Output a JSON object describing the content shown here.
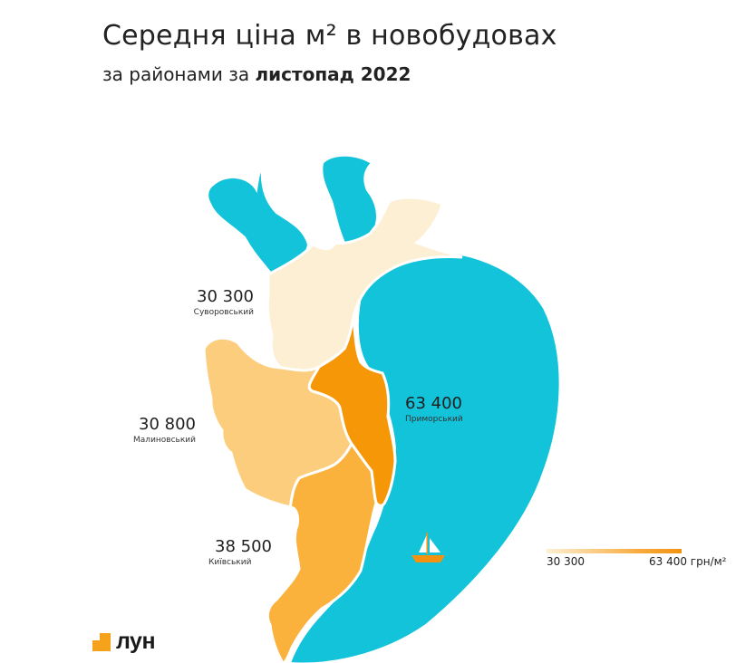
{
  "header": {
    "title": "Середня ціна м² в новобудовах",
    "subtitle_prefix": "за районами за ",
    "subtitle_period": "листопад 2022"
  },
  "districts": [
    {
      "name": "Суворовський",
      "price": "30 300",
      "price_value": 30300,
      "color": "#fdefd3"
    },
    {
      "name": "Малиновський",
      "price": "30 800",
      "price_value": 30800,
      "color": "#fccd7d"
    },
    {
      "name": "Київський",
      "price": "38 500",
      "price_value": 38500,
      "color": "#fab23c"
    },
    {
      "name": "Приморський",
      "price": "63 400",
      "price_value": 63400,
      "color": "#f69708"
    }
  ],
  "water": {
    "color": "#12c3da"
  },
  "legend": {
    "min_label": "30 300",
    "max_label": "63 400 грн/м²",
    "min_color": "#fdf0d3",
    "max_color": "#f39210"
  },
  "boat_icon": "sailboat-icon",
  "brand": {
    "logo_text": "лун",
    "logo_color": "#f7a21b"
  }
}
